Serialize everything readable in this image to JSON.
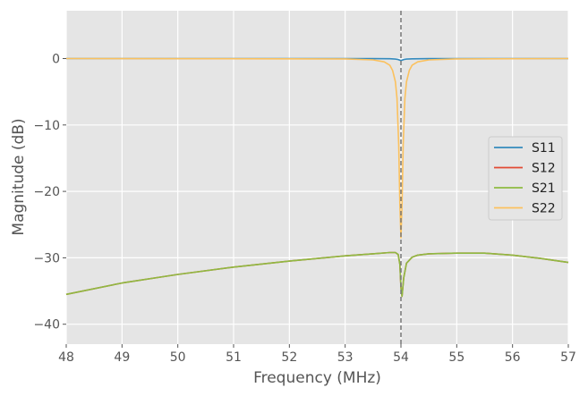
{
  "chart_data": {
    "type": "line",
    "xlabel": "Frequency (MHz)",
    "ylabel": "Magnitude (dB)",
    "xlim": [
      48,
      57
    ],
    "ylim": [
      -43,
      7.2
    ],
    "xticks": [
      48,
      49,
      50,
      51,
      52,
      53,
      54,
      55,
      56,
      57
    ],
    "yticks": [
      0,
      -10,
      -20,
      -30,
      -40
    ],
    "xtick_labels": [
      "48",
      "49",
      "50",
      "51",
      "52",
      "53",
      "54",
      "55",
      "56",
      "57"
    ],
    "ytick_labels": [
      "0",
      "−10",
      "−20",
      "−30",
      "−40"
    ],
    "grid": true,
    "legend_position": "center-right",
    "vline": {
      "x": 54.0,
      "style": "dashed",
      "color": "#777777"
    },
    "series": [
      {
        "name": "S11",
        "color": "#348ABD",
        "x": [
          48,
          52,
          53,
          53.5,
          53.8,
          53.9,
          53.95,
          53.98,
          54.0,
          54.02,
          54.05,
          54.1,
          54.2,
          54.5,
          55,
          57
        ],
        "y": [
          0,
          0,
          0,
          -0.01,
          -0.03,
          -0.08,
          -0.15,
          -0.25,
          -0.3,
          -0.25,
          -0.15,
          -0.08,
          -0.04,
          -0.01,
          0,
          0
        ]
      },
      {
        "name": "S12",
        "color": "#E24A33",
        "x": [
          48,
          49,
          50,
          51,
          52,
          53,
          53.5,
          53.8,
          53.9,
          53.95,
          53.98,
          54.0,
          54.02,
          54.05,
          54.1,
          54.2,
          54.3,
          54.5,
          55.0,
          55.5,
          56.0,
          56.5,
          57.0
        ],
        "y": [
          -35.5,
          -33.8,
          -32.5,
          -31.4,
          -30.5,
          -29.7,
          -29.4,
          -29.2,
          -29.2,
          -29.5,
          -31.0,
          -34.5,
          -35.8,
          -33.0,
          -30.8,
          -29.9,
          -29.6,
          -29.4,
          -29.3,
          -29.3,
          -29.6,
          -30.1,
          -30.7
        ]
      },
      {
        "name": "S21",
        "color": "#8EBA42",
        "x": [
          48,
          49,
          50,
          51,
          52,
          53,
          53.5,
          53.8,
          53.9,
          53.95,
          53.98,
          54.0,
          54.02,
          54.05,
          54.1,
          54.2,
          54.3,
          54.5,
          55.0,
          55.5,
          56.0,
          56.5,
          57.0
        ],
        "y": [
          -35.5,
          -33.8,
          -32.5,
          -31.4,
          -30.5,
          -29.7,
          -29.4,
          -29.2,
          -29.2,
          -29.5,
          -31.0,
          -34.5,
          -35.8,
          -33.0,
          -30.8,
          -29.9,
          -29.6,
          -29.4,
          -29.3,
          -29.3,
          -29.6,
          -30.1,
          -30.7
        ]
      },
      {
        "name": "S22",
        "color": "#FBC15E",
        "x": [
          48,
          53,
          53.5,
          53.7,
          53.8,
          53.85,
          53.9,
          53.93,
          53.96,
          53.98,
          54.0,
          54.02,
          54.04,
          54.07,
          54.1,
          54.15,
          54.2,
          54.3,
          54.5,
          55,
          57
        ],
        "y": [
          0,
          -0.05,
          -0.2,
          -0.5,
          -1.0,
          -1.8,
          -3.5,
          -6,
          -13,
          -22,
          -27,
          -22,
          -13,
          -6,
          -3.5,
          -1.8,
          -1.0,
          -0.5,
          -0.2,
          -0.05,
          0
        ]
      }
    ]
  }
}
